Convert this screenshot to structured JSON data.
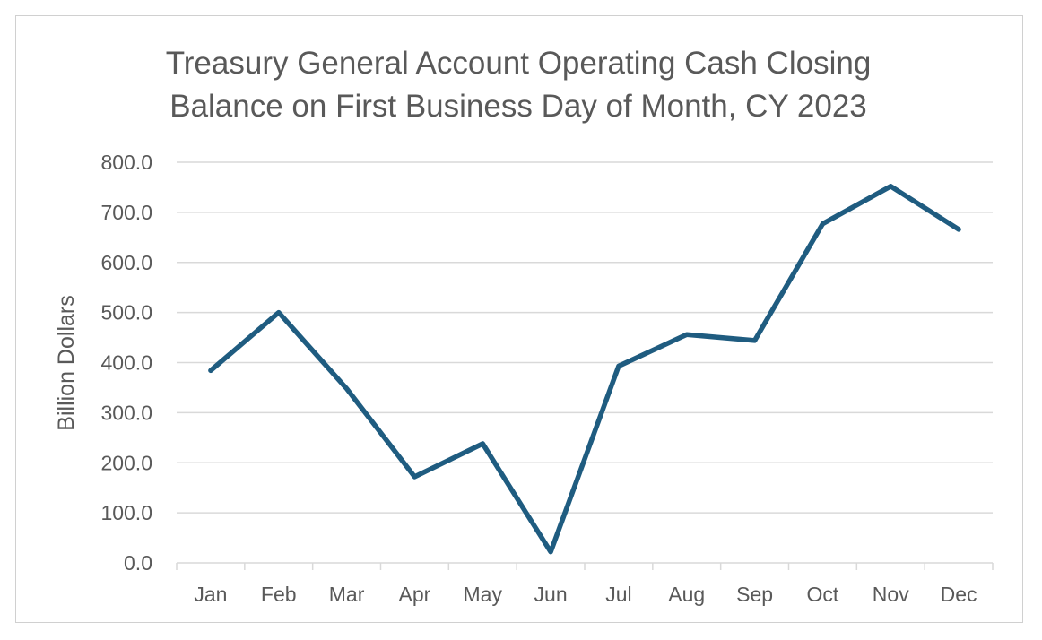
{
  "chart_data": {
    "type": "line",
    "title_lines": [
      "Treasury General Account Operating Cash Closing",
      "Balance on First Business Day of Month, CY 2023"
    ],
    "xlabel": "",
    "ylabel": "Billion Dollars",
    "categories": [
      "Jan",
      "Feb",
      "Mar",
      "Apr",
      "May",
      "Jun",
      "Jul",
      "Aug",
      "Sep",
      "Oct",
      "Nov",
      "Dec"
    ],
    "series": [
      {
        "values": [
          384,
          500,
          348,
          172,
          238,
          22,
          393,
          456,
          444,
          677,
          752,
          666
        ],
        "color": "#1f5c80"
      }
    ],
    "ylim": [
      0,
      800
    ],
    "yticks": [
      "0.0",
      "100.0",
      "200.0",
      "300.0",
      "400.0",
      "500.0",
      "600.0",
      "700.0",
      "800.0"
    ],
    "grid": true,
    "legend": "none"
  }
}
